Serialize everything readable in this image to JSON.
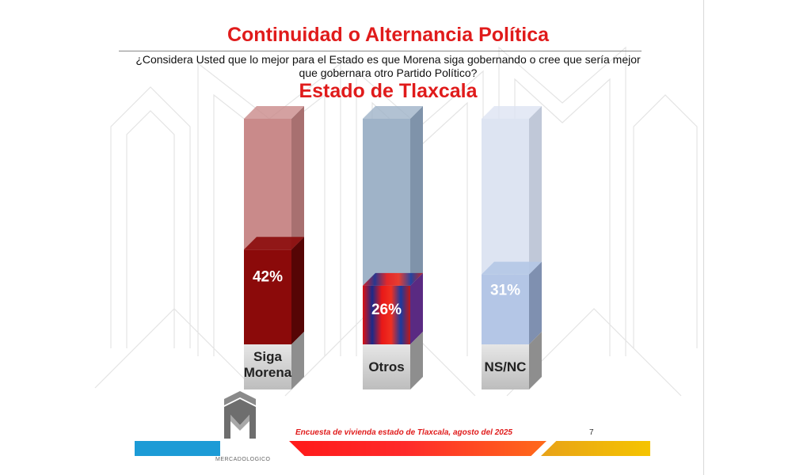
{
  "title": "Continuidad o Alternancia Política",
  "question": "¿Considera Usted que lo mejor para el Estado es que Morena siga gobernando o cree que sería mejor que gobernara otro Partido Político?",
  "subtitle": "Estado de Tlaxcala",
  "footer": {
    "text": "Encuesta de vivienda estado de Tlaxcala, agosto del 2025",
    "page": "7",
    "logo_caption": "MERCADOLOGICO"
  },
  "chart_data": {
    "type": "bar",
    "title": "Estado de Tlaxcala",
    "categories": [
      "Siga Morena",
      "Otros",
      "NS/NC"
    ],
    "values": [
      42,
      26,
      31
    ],
    "value_labels": [
      "42%",
      "26%",
      "31%"
    ],
    "ylim": [
      0,
      100
    ],
    "colors": {
      "fill": [
        "#8b0a0a",
        "gradient-red-blue-purple",
        "#b4c6e6"
      ],
      "empty": [
        "#c98a8a",
        "#9fb3c8",
        "#dde4f2"
      ],
      "side_fill": [
        "#560505",
        "#5a2a82",
        "#7f90b0"
      ],
      "side_empty": [
        "#a87070",
        "#7f93aa",
        "#c0c8d8"
      ],
      "label_box": "#cfcfcf"
    },
    "xlabel": "",
    "ylabel": ""
  }
}
